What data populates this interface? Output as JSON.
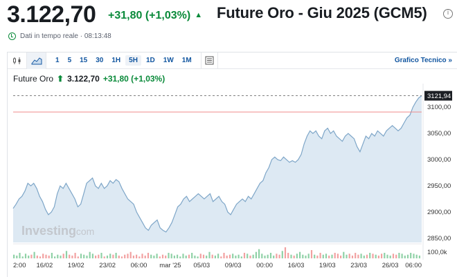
{
  "header": {
    "price": "3.122,70",
    "change": "+31,80 (+1,03%)",
    "title": "Future Oro - Giu 2025 (GCM5)",
    "info_icon": "info-icon",
    "realtime_label": "Dati in tempo reale · 08:13:48"
  },
  "toolbar": {
    "periods": [
      "1",
      "5",
      "15",
      "30",
      "1H",
      "5H",
      "1D",
      "1W",
      "1M"
    ],
    "active_period": "5H",
    "technical_label": "Grafico Tecnico »",
    "icons": [
      "candlestick-icon",
      "area-chart-icon",
      "indicators-icon"
    ]
  },
  "legend": {
    "name": "Future Oro",
    "value": "3.122,70",
    "change": "+31,80 (+1,03%)"
  },
  "watermark": {
    "brand": "Investing",
    "suffix": ".com"
  },
  "colors": {
    "up": "#0a8a3a",
    "link": "#1256a0",
    "area_fill": "#dde9f3",
    "line": "#7ea6c8",
    "ref_line": "#f08a8a"
  },
  "chart_data": {
    "type": "area",
    "x_ticks": [
      "2:00",
      "16/02",
      "19/02",
      "23/02",
      "06:00",
      "mar '25",
      "05/03",
      "09/03",
      "00:00",
      "16/03",
      "19/03",
      "23/03",
      "26/03",
      "06:00"
    ],
    "y_ticks": [
      3100,
      3050,
      3000,
      2950,
      2900,
      2850
    ],
    "y_tick_labels": [
      "3100,00",
      "3050,00",
      "3000,00",
      "2950,00",
      "2900,00",
      "2850,00"
    ],
    "ylim": [
      2842,
      3128
    ],
    "current_value": 3121.94,
    "current_label": "3121,94",
    "reference_value": 3090.9,
    "volume_label": "100,0k",
    "values": [
      2907,
      2915,
      2925,
      2930,
      2940,
      2955,
      2950,
      2955,
      2945,
      2930,
      2920,
      2905,
      2895,
      2900,
      2910,
      2935,
      2950,
      2945,
      2955,
      2945,
      2935,
      2925,
      2910,
      2915,
      2935,
      2955,
      2960,
      2965,
      2950,
      2945,
      2955,
      2945,
      2950,
      2960,
      2955,
      2962,
      2958,
      2945,
      2935,
      2925,
      2920,
      2915,
      2900,
      2890,
      2880,
      2870,
      2865,
      2875,
      2880,
      2885,
      2870,
      2865,
      2862,
      2870,
      2880,
      2895,
      2910,
      2915,
      2925,
      2930,
      2920,
      2925,
      2930,
      2935,
      2930,
      2925,
      2930,
      2935,
      2920,
      2925,
      2930,
      2920,
      2915,
      2900,
      2895,
      2905,
      2915,
      2920,
      2925,
      2920,
      2930,
      2925,
      2935,
      2945,
      2955,
      2960,
      2975,
      2985,
      3000,
      3005,
      3000,
      2998,
      3005,
      3000,
      2995,
      2998,
      2995,
      3000,
      3010,
      3030,
      3045,
      3055,
      3050,
      3055,
      3045,
      3040,
      3055,
      3060,
      3050,
      3055,
      3045,
      3040,
      3035,
      3045,
      3050,
      3045,
      3040,
      3025,
      3015,
      3030,
      3045,
      3040,
      3050,
      3045,
      3055,
      3050,
      3045,
      3055,
      3060,
      3065,
      3060,
      3055,
      3060,
      3070,
      3080,
      3085,
      3100,
      3110,
      3118,
      3122
    ],
    "volumes": [
      4,
      3,
      6,
      2,
      5,
      3,
      4,
      7,
      3,
      2,
      5,
      4,
      3,
      6,
      2,
      4,
      3,
      5,
      8,
      4,
      3,
      6,
      2,
      5,
      4,
      3,
      7,
      5,
      3,
      4,
      6,
      2,
      3,
      5,
      4,
      6,
      3,
      2,
      4,
      5,
      7,
      3,
      4,
      2,
      5,
      3,
      6,
      4,
      3,
      5,
      2,
      4,
      3,
      6,
      5,
      3,
      4,
      2,
      5,
      3,
      4,
      6,
      3,
      2,
      5,
      4,
      3,
      7,
      4,
      3,
      5,
      2,
      6,
      3,
      4,
      5,
      3,
      4,
      2,
      6,
      5,
      3,
      4,
      7,
      10,
      5,
      3,
      4,
      6,
      3,
      5,
      4,
      8,
      12,
      6,
      4,
      3,
      5,
      7,
      4,
      3,
      5,
      9,
      4,
      3,
      6,
      4,
      5,
      3,
      4,
      6,
      5,
      3,
      7,
      4,
      5,
      3,
      6,
      4,
      5,
      3,
      4,
      6,
      5,
      4,
      3,
      5,
      6,
      4,
      3,
      5,
      4,
      6,
      5,
      3,
      4,
      6,
      5,
      4,
      3
    ]
  }
}
